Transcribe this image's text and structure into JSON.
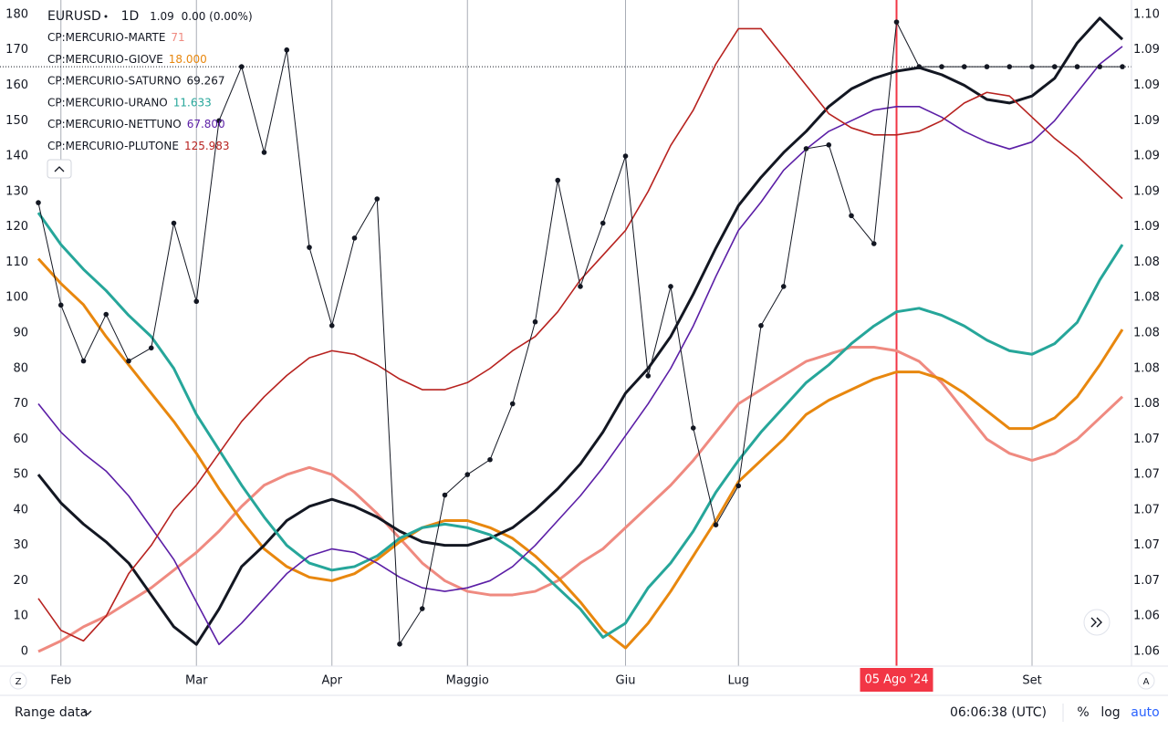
{
  "chart_data": {
    "type": "line",
    "header": {
      "symbol": "EURUSD",
      "interval": "1D",
      "price": "1.09",
      "change": "0.00 (0.00%)"
    },
    "categories": [
      null,
      "Feb",
      null,
      null,
      null,
      null,
      null,
      "Mar",
      null,
      null,
      null,
      null,
      null,
      "Apr",
      null,
      null,
      null,
      null,
      null,
      "Maggio",
      null,
      null,
      null,
      null,
      null,
      null,
      "Giu",
      null,
      null,
      null,
      null,
      "Lug",
      null,
      null,
      null,
      null,
      null,
      null,
      "05 Ago '24",
      null,
      null,
      null,
      null,
      null,
      "Set",
      null,
      null,
      null,
      null
    ],
    "crosshair": {
      "category": 38,
      "color": "#f23645"
    },
    "ylim": [
      -4,
      182
    ],
    "yticks": [
      0,
      10,
      20,
      30,
      40,
      50,
      60,
      70,
      80,
      90,
      100,
      110,
      120,
      130,
      140,
      150,
      160,
      170,
      180
    ],
    "y2lim": [
      1.06174,
      1.09708
    ],
    "y2ticks": [
      {
        "value": 1.0625,
        "label": "1.06"
      },
      {
        "value": 1.0644,
        "label": "1.06"
      },
      {
        "value": 1.0663,
        "label": "1.07"
      },
      {
        "value": 1.0682,
        "label": "1.07"
      },
      {
        "value": 1.0701,
        "label": "1.07"
      },
      {
        "value": 1.072,
        "label": "1.07"
      },
      {
        "value": 1.0739,
        "label": "1.07"
      },
      {
        "value": 1.0758,
        "label": "1.08"
      },
      {
        "value": 1.0777,
        "label": "1.08"
      },
      {
        "value": 1.0796,
        "label": "1.08"
      },
      {
        "value": 1.0815,
        "label": "1.08"
      },
      {
        "value": 1.0834,
        "label": "1.08"
      },
      {
        "value": 1.0853,
        "label": "1.09"
      },
      {
        "value": 1.0872,
        "label": "1.09"
      },
      {
        "value": 1.0891,
        "label": "1.09"
      },
      {
        "value": 1.091,
        "label": "1.09"
      },
      {
        "value": 1.0929,
        "label": "1.09"
      },
      {
        "value": 1.0948,
        "label": "1.09"
      },
      {
        "value": 1.0967,
        "label": "1.10"
      }
    ],
    "xgrid": true,
    "series": [
      {
        "name": "CP:MERCURIO-MARTE",
        "legend_value": "71",
        "color": "#ef8a80",
        "width": 3,
        "values": [
          0,
          3,
          7,
          10,
          14,
          18,
          23,
          28,
          34,
          41,
          47,
          50,
          52,
          50,
          45,
          39,
          32,
          25,
          20,
          17,
          16,
          16,
          17,
          20,
          25,
          29,
          35,
          41,
          47,
          54,
          62,
          70,
          74,
          78,
          82,
          84,
          86,
          86,
          85,
          82,
          76,
          68,
          60,
          56,
          54,
          56,
          60,
          66,
          72
        ]
      },
      {
        "name": "CP:MERCURIO-GIOVE",
        "legend_value": "18.000",
        "color": "#e8870e",
        "width": 3,
        "values": [
          111,
          104,
          98,
          89,
          81,
          73,
          65,
          56,
          46,
          37,
          29,
          24,
          21,
          20,
          22,
          26,
          31,
          35,
          37,
          37,
          35,
          32,
          27,
          21,
          14,
          6,
          1,
          8,
          17,
          27,
          37,
          48,
          54,
          60,
          67,
          71,
          74,
          77,
          79,
          79,
          77,
          73,
          68,
          63,
          63,
          66,
          72,
          81,
          91
        ]
      },
      {
        "name": "CP:MERCURIO-SATURNO",
        "legend_value": "69.267",
        "color": "#131722",
        "width": 3,
        "values": [
          50,
          42,
          36,
          31,
          25,
          16,
          7,
          2,
          12,
          24,
          30,
          37,
          41,
          43,
          41,
          38,
          34,
          31,
          30,
          30,
          32,
          35,
          40,
          46,
          53,
          62,
          73,
          80,
          89,
          101,
          114,
          126,
          134,
          141,
          147,
          154,
          159,
          162,
          164,
          165,
          163,
          160,
          156,
          155,
          157,
          162,
          172,
          179,
          173
        ]
      },
      {
        "name": "CP:MERCURIO-URANO",
        "legend_value": "11.633",
        "color": "#26a69a",
        "width": 3,
        "values": [
          124,
          115,
          108,
          102,
          95,
          89,
          80,
          67,
          57,
          47,
          38,
          30,
          25,
          23,
          24,
          27,
          32,
          35,
          36,
          35,
          33,
          29,
          24,
          18,
          12,
          4,
          8,
          18,
          25,
          34,
          45,
          54,
          62,
          69,
          76,
          81,
          87,
          92,
          96,
          97,
          95,
          92,
          88,
          85,
          84,
          87,
          93,
          105,
          115
        ]
      },
      {
        "name": "CP:MERCURIO-NETTUNO",
        "legend_value": "67.800",
        "color": "#5b1ea6",
        "width": 1.6,
        "values": [
          70,
          62,
          56,
          51,
          44,
          35,
          26,
          14,
          2,
          8,
          15,
          22,
          27,
          29,
          28,
          25,
          21,
          18,
          17,
          18,
          20,
          24,
          30,
          37,
          44,
          52,
          61,
          70,
          80,
          92,
          106,
          119,
          127,
          136,
          142,
          147,
          150,
          153,
          154,
          154,
          151,
          147,
          144,
          142,
          144,
          150,
          158,
          166,
          171
        ]
      },
      {
        "name": "CP:MERCURIO-PLUTONE",
        "legend_value": "125.983",
        "color": "#b7221f",
        "width": 1.6,
        "values": [
          15,
          6,
          3,
          10,
          22,
          30,
          40,
          47,
          56,
          65,
          72,
          78,
          83,
          85,
          84,
          81,
          77,
          74,
          74,
          76,
          80,
          85,
          89,
          96,
          105,
          112,
          119,
          130,
          143,
          153,
          166,
          176,
          176,
          168,
          160,
          152,
          148,
          146,
          146,
          147,
          150,
          155,
          158,
          157,
          151,
          145,
          140,
          134,
          128
        ]
      },
      {
        "name": "EURUSD",
        "axis": "y2",
        "color": "#131722",
        "width": 1,
        "markers": true,
        "price_line": true,
        "values": [
          1.0866,
          1.0811,
          1.0781,
          1.0806,
          1.0781,
          1.0788,
          1.0855,
          1.0813,
          1.091,
          1.0939,
          1.0893,
          1.0948,
          1.0842,
          1.08,
          1.0847,
          1.0868,
          1.0629,
          1.0648,
          1.0709,
          1.072,
          1.0728,
          1.0758,
          1.0802,
          1.0878,
          1.0821,
          1.0855,
          1.0891,
          1.0773,
          1.0821,
          1.0745,
          1.0693,
          1.0714,
          1.08,
          1.0821,
          1.0895,
          1.0897,
          1.0859,
          1.0844,
          1.0963,
          1.0939,
          1.0939,
          1.0939,
          1.0939,
          1.0939,
          1.0939,
          1.0939,
          1.0939,
          1.0939,
          1.0939
        ]
      }
    ],
    "toolbar": {
      "left_button": "Z",
      "right_button": "A",
      "range": "Range data",
      "time": "06:06:38 (UTC)",
      "percent": "%",
      "log": "log",
      "auto": "auto"
    }
  }
}
